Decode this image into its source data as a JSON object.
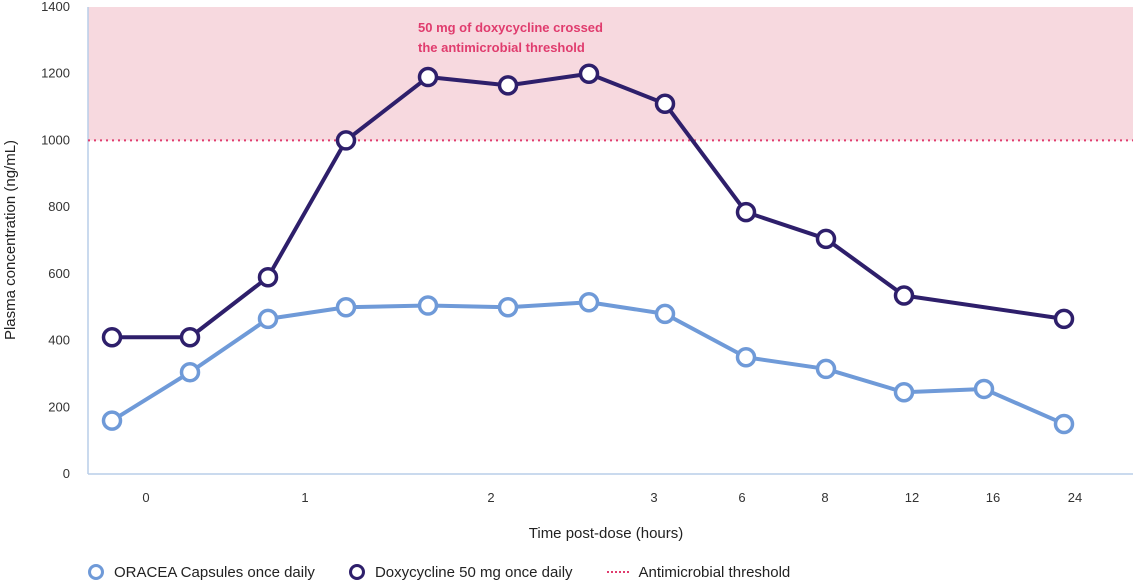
{
  "chart_data": {
    "type": "line",
    "xlabel": "Time post-dose (hours)",
    "ylabel": "Plasma concentration (ng/mL)",
    "ylim": [
      0,
      1400
    ],
    "yticks": [
      0,
      200,
      400,
      600,
      800,
      1000,
      1200,
      1400
    ],
    "xtick_labels": [
      "0",
      "1",
      "2",
      "3",
      "6",
      "8",
      "12",
      "16",
      "24"
    ],
    "x": [
      "0",
      "0.5",
      "1",
      "1.25",
      "1.75",
      "2",
      "2.5",
      "3",
      "6",
      "8",
      "12",
      "16",
      "24"
    ],
    "series": [
      {
        "name": "ORACEA Capsules once daily",
        "color": "#6f9ad8",
        "values": [
          160,
          305,
          465,
          500,
          505,
          500,
          515,
          480,
          350,
          315,
          245,
          255,
          150
        ]
      },
      {
        "name": "Doxycycline 50 mg once daily",
        "color": "#2e1f6b",
        "values": [
          410,
          410,
          590,
          1000,
          1190,
          1165,
          1200,
          1110,
          785,
          705,
          535,
          null,
          465
        ]
      }
    ],
    "threshold": {
      "name": "Antimicrobial threshold",
      "value": 1000,
      "color": "#e03c6e",
      "annotation_line1": "50 mg of doxycycline crossed",
      "annotation_line2": "the antimicrobial threshold"
    },
    "legend_position": "bottom",
    "grid": false
  }
}
